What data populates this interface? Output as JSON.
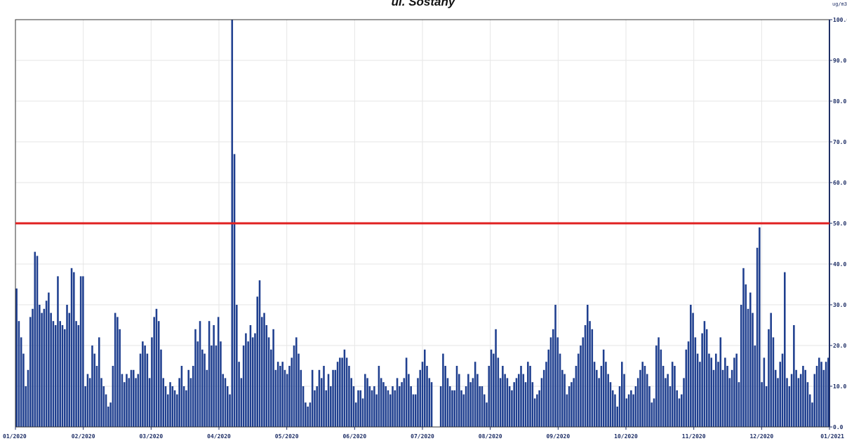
{
  "chart_data": {
    "type": "bar",
    "title": "ul. Sostaný",
    "unit_label": "ug/m3",
    "ylim": [
      0,
      100
    ],
    "y_ticks": [
      "0.0",
      "10.0",
      "20.0",
      "30.0",
      "40.0",
      "50.0",
      "60.0",
      "70.0",
      "80.0",
      "90.0",
      "100.0"
    ],
    "y_tick_values": [
      0,
      10,
      20,
      30,
      40,
      50,
      60,
      70,
      80,
      90,
      100
    ],
    "x_ticks": [
      "01/2020",
      "02/2020",
      "03/2020",
      "04/2020",
      "05/2020",
      "06/2020",
      "07/2020",
      "08/2020",
      "09/2020",
      "10/2020",
      "11/2020",
      "12/2020",
      "01/2021"
    ],
    "limit_value": 50,
    "colors": {
      "bar": "#1f3f8f",
      "limit": "#e02020",
      "axis": "#1f2f66",
      "grid": "#e6e6e6"
    },
    "grid": true,
    "series": [
      {
        "values": [
          34,
          26,
          22,
          18,
          10,
          14,
          27,
          29,
          43,
          42,
          30,
          28,
          29,
          31,
          33,
          28,
          26,
          25,
          37,
          26,
          25,
          24,
          30,
          28,
          39,
          38,
          26,
          25,
          37,
          37,
          10,
          13,
          12,
          20,
          18,
          15,
          22,
          12,
          10,
          8,
          5,
          6,
          15,
          28,
          27,
          24,
          13,
          11,
          13,
          12,
          14,
          14,
          12,
          13,
          18,
          21,
          20,
          18,
          12,
          22,
          27,
          29,
          26,
          19,
          12,
          10,
          8,
          11,
          10,
          9,
          8,
          12,
          15,
          10,
          9,
          14,
          12,
          15,
          24,
          21,
          26,
          19,
          18,
          14,
          26,
          20,
          25,
          20,
          27,
          21,
          13,
          12,
          10,
          8,
          100,
          67,
          30,
          16,
          12,
          20,
          23,
          21,
          25,
          22,
          23,
          32,
          36,
          27,
          28,
          25,
          22,
          19,
          24,
          14,
          16,
          15,
          16,
          14,
          13,
          15,
          17,
          20,
          22,
          18,
          14,
          10,
          6,
          5,
          6,
          14,
          9,
          10,
          14,
          12,
          15,
          9,
          13,
          10,
          14,
          14,
          16,
          17,
          17,
          19,
          17,
          15,
          12,
          10,
          6,
          9,
          9,
          7,
          13,
          12,
          10,
          9,
          10,
          8,
          15,
          12,
          11,
          10,
          9,
          8,
          10,
          9,
          12,
          10,
          11,
          12,
          17,
          13,
          10,
          8,
          8,
          12,
          14,
          16,
          19,
          15,
          12,
          11,
          0,
          0,
          0,
          10,
          18,
          15,
          12,
          10,
          9,
          9,
          15,
          13,
          9,
          8,
          10,
          13,
          11,
          12,
          16,
          13,
          10,
          10,
          8,
          6,
          15,
          19,
          18,
          24,
          17,
          12,
          15,
          13,
          12,
          10,
          9,
          11,
          12,
          13,
          15,
          13,
          11,
          16,
          15,
          11,
          7,
          8,
          9,
          12,
          14,
          16,
          19,
          22,
          24,
          30,
          22,
          18,
          14,
          13,
          8,
          10,
          11,
          12,
          15,
          18,
          20,
          22,
          25,
          30,
          26,
          24,
          16,
          14,
          12,
          15,
          19,
          16,
          13,
          11,
          9,
          8,
          5,
          10,
          16,
          13,
          7,
          8,
          9,
          8,
          10,
          12,
          14,
          16,
          15,
          13,
          10,
          6,
          7,
          20,
          22,
          19,
          15,
          12,
          13,
          10,
          16,
          15,
          9,
          7,
          8,
          12,
          19,
          21,
          30,
          28,
          22,
          18,
          16,
          23,
          26,
          24,
          18,
          17,
          14,
          18,
          16,
          22,
          14,
          17,
          15,
          12,
          14,
          17,
          18,
          11,
          30,
          39,
          35,
          29,
          33,
          28,
          20,
          44,
          49,
          11,
          17,
          10,
          24,
          28,
          22,
          14,
          12,
          16,
          18,
          38,
          12,
          10,
          13,
          25,
          14,
          12,
          13,
          15,
          14,
          11,
          8,
          6,
          13,
          15,
          17,
          16,
          14,
          16,
          17
        ]
      }
    ]
  }
}
